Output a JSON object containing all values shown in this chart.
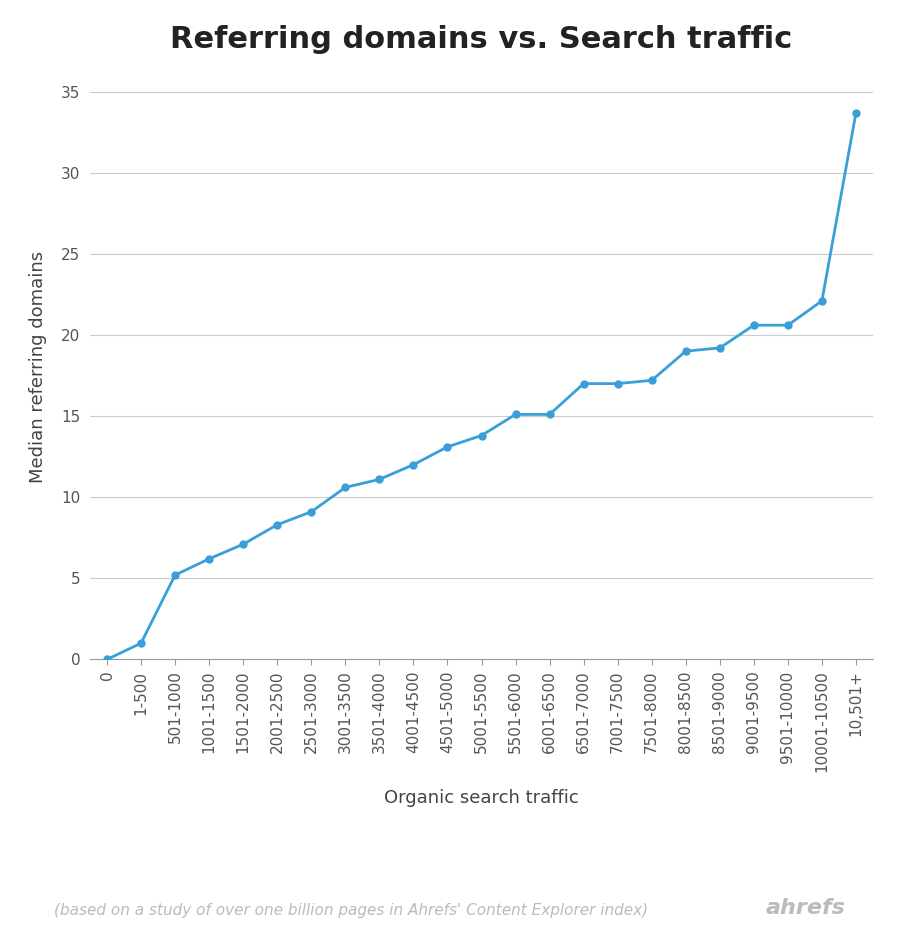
{
  "title": "Referring domains vs. Search traffic",
  "xlabel": "Organic search traffic",
  "ylabel": "Median referring domains",
  "footnote": "(based on a study of over one billion pages in Ahrefs' Content Explorer index)",
  "brand": "ahrefs",
  "x_labels": [
    "0",
    "1-500",
    "501-1000",
    "1001-1500",
    "1501-2000",
    "2001-2500",
    "2501-3000",
    "3001-3500",
    "3501-4000",
    "4001-4500",
    "4501-5000",
    "5001-5500",
    "5501-6000",
    "6001-6500",
    "6501-7000",
    "7001-7500",
    "7501-8000",
    "8001-8500",
    "8501-9000",
    "9001-9500",
    "9501-10000",
    "10001-10500",
    "10,501+"
  ],
  "y_values": [
    0,
    1,
    5.2,
    6.2,
    7.1,
    8.3,
    9.1,
    10.6,
    11.1,
    12.0,
    13.1,
    13.8,
    15.1,
    15.1,
    17.0,
    17.0,
    17.2,
    19.0,
    19.2,
    20.6,
    20.6,
    22.1,
    33.7
  ],
  "line_color": "#3a9fd8",
  "marker_color": "#3a9fd8",
  "background_color": "#ffffff",
  "grid_color": "#cccccc",
  "title_fontsize": 22,
  "axis_label_fontsize": 13,
  "tick_fontsize": 11,
  "footnote_fontsize": 11,
  "brand_fontsize": 16,
  "ylim": [
    0,
    36
  ],
  "yticks": [
    0,
    5,
    10,
    15,
    20,
    25,
    30,
    35
  ]
}
